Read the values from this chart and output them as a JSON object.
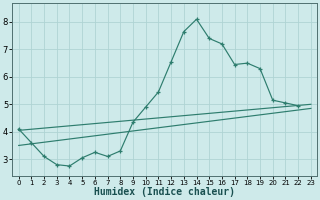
{
  "xlabel": "Humidex (Indice chaleur)",
  "bg_color": "#ceeaea",
  "line_color": "#2e7d6e",
  "grid_color": "#afd4d4",
  "xlim": [
    -0.5,
    23.5
  ],
  "ylim": [
    2.4,
    8.7
  ],
  "yticks": [
    3,
    4,
    5,
    6,
    7,
    8
  ],
  "xticks": [
    0,
    1,
    2,
    3,
    4,
    5,
    6,
    7,
    8,
    9,
    10,
    11,
    12,
    13,
    14,
    15,
    16,
    17,
    18,
    19,
    20,
    21,
    22,
    23
  ],
  "curve_x": [
    0,
    1,
    2,
    3,
    4,
    5,
    6,
    7,
    8,
    9,
    10,
    11,
    12,
    13,
    14,
    15,
    16,
    17,
    18,
    19,
    20,
    21,
    22
  ],
  "curve_y": [
    4.1,
    3.6,
    3.1,
    2.8,
    2.75,
    3.05,
    3.25,
    3.1,
    3.3,
    4.35,
    4.9,
    5.45,
    6.55,
    7.65,
    8.1,
    7.4,
    7.2,
    6.45,
    6.5,
    6.3,
    5.15,
    5.05,
    4.95
  ],
  "line1_x": [
    0,
    23
  ],
  "line1_y": [
    4.05,
    5.0
  ],
  "line2_x": [
    0,
    23
  ],
  "line2_y": [
    3.5,
    4.85
  ]
}
